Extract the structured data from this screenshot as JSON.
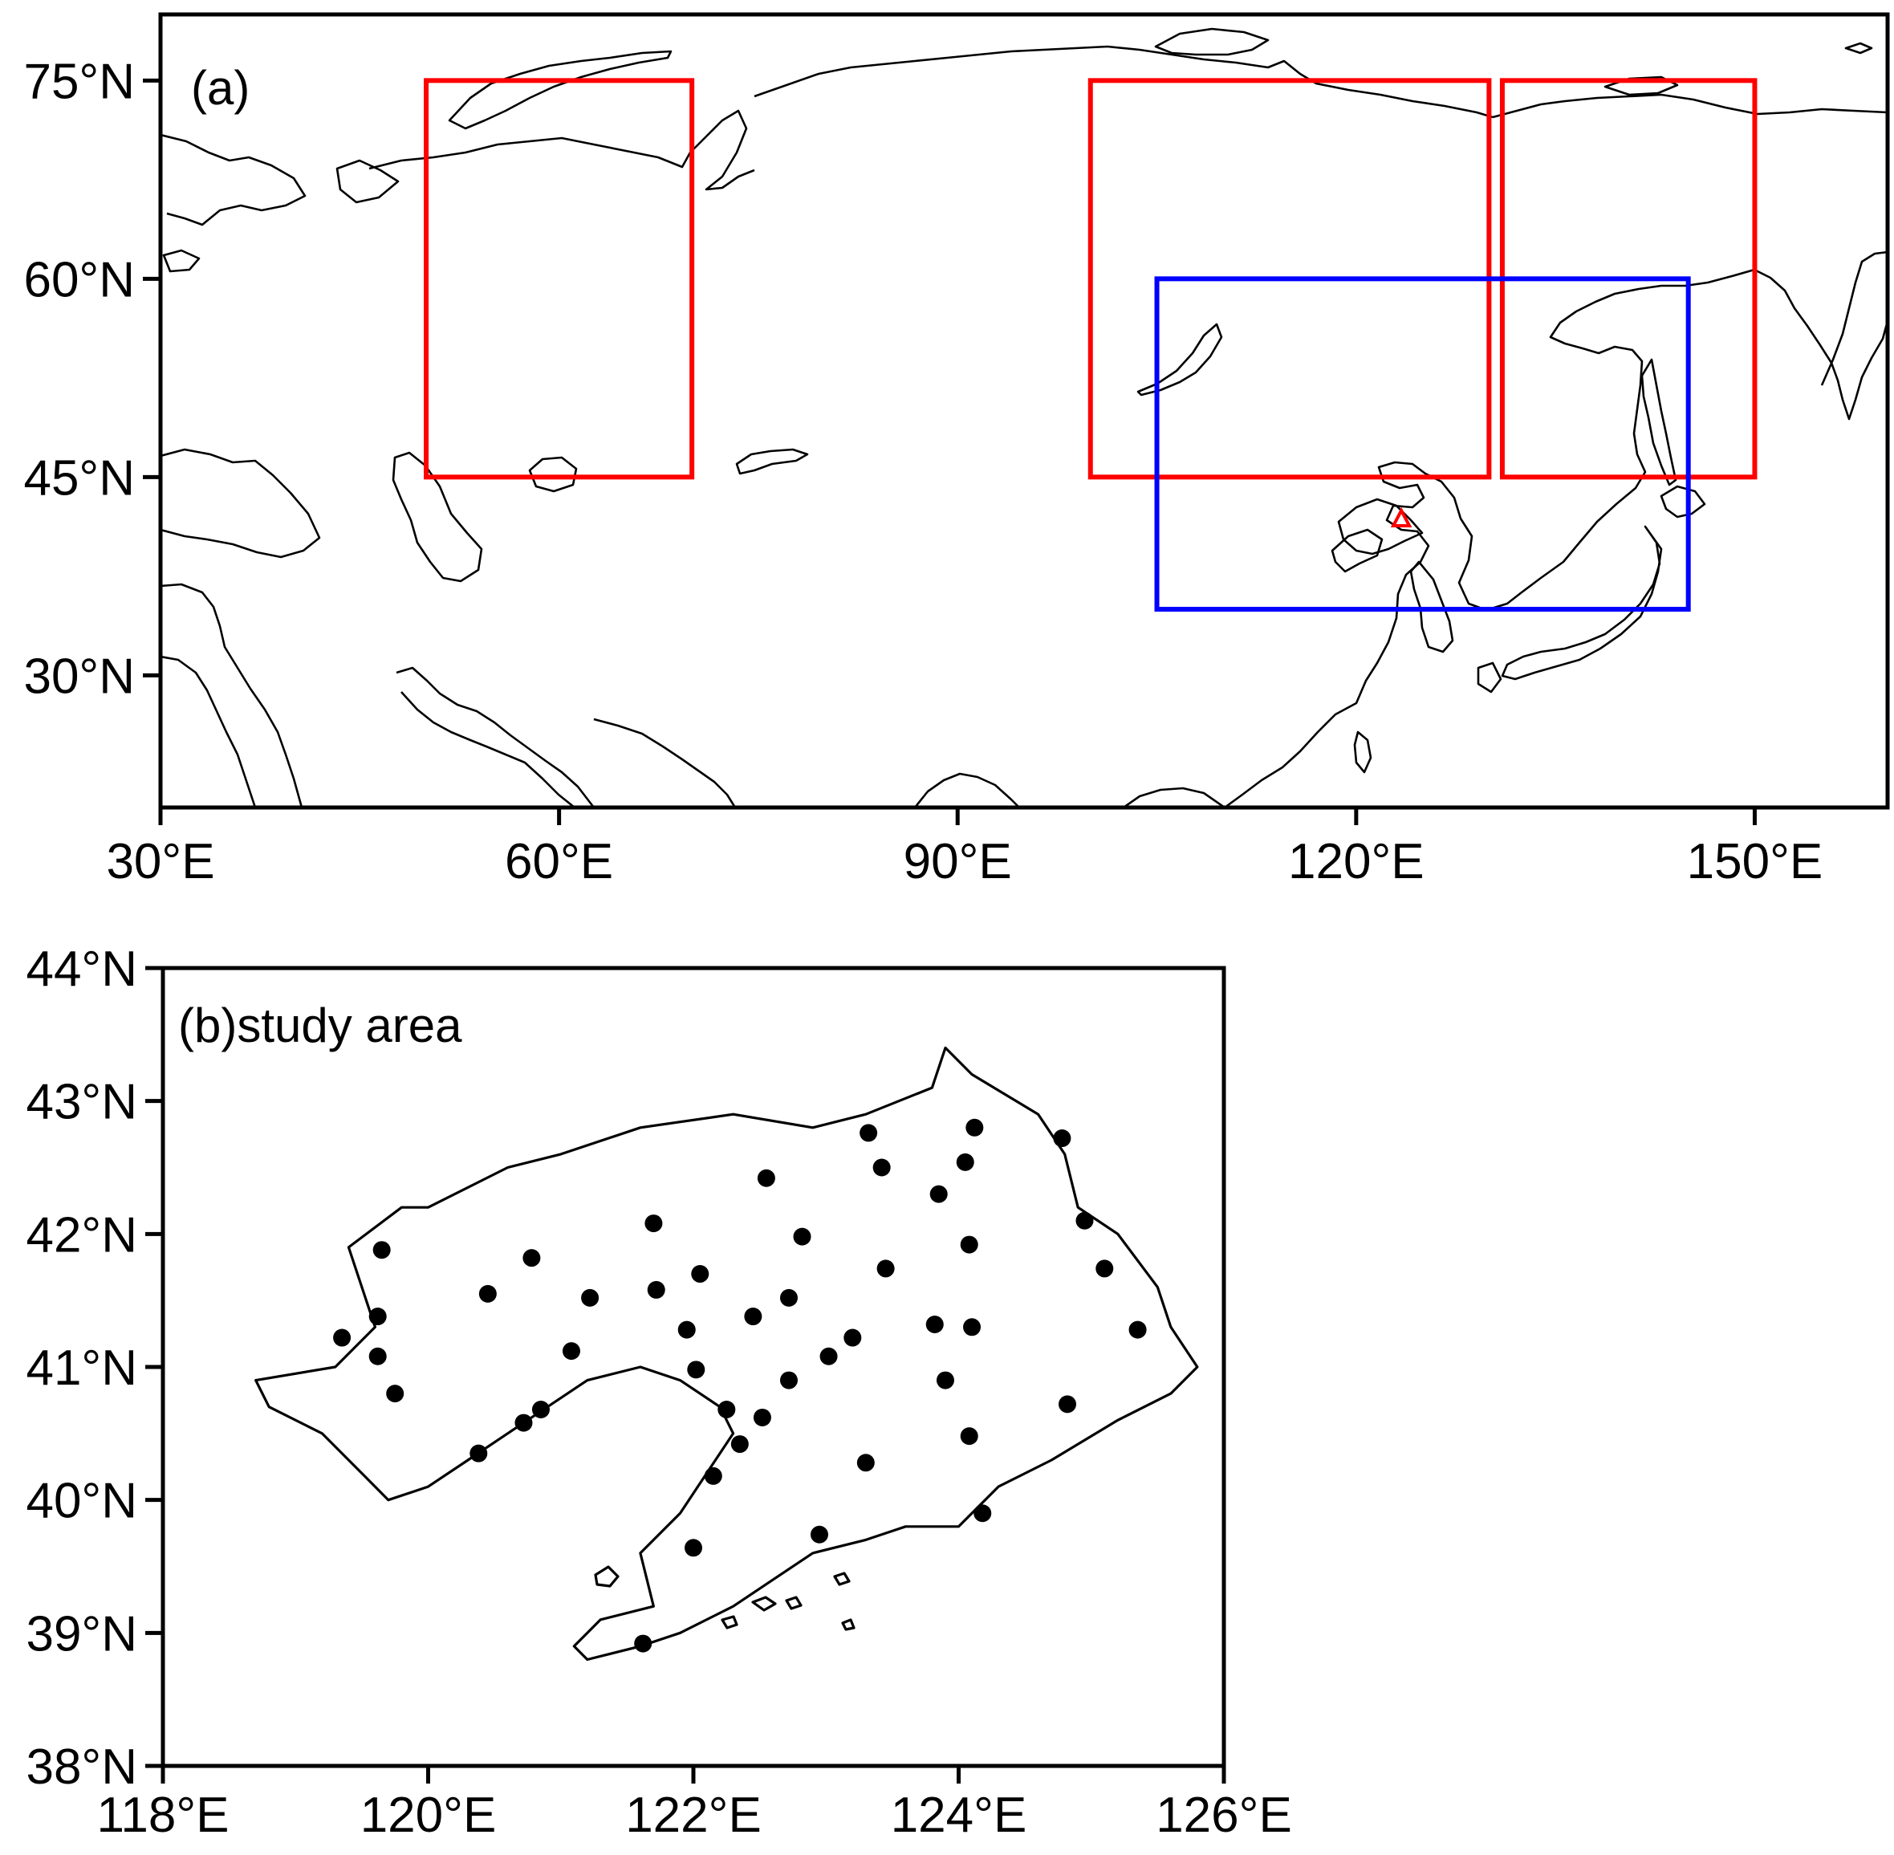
{
  "panel_a": {
    "label": "(a)",
    "lon_range": [
      30,
      160
    ],
    "lat_range": [
      20,
      80
    ],
    "x_ticks": [
      {
        "value": 30,
        "label": "30°E"
      },
      {
        "value": 60,
        "label": "60°E"
      },
      {
        "value": 90,
        "label": "90°E"
      },
      {
        "value": 120,
        "label": "120°E"
      },
      {
        "value": 150,
        "label": "150°E"
      }
    ],
    "y_ticks": [
      {
        "value": 30,
        "label": "30°N"
      },
      {
        "value": 45,
        "label": "45°N"
      },
      {
        "value": 60,
        "label": "60°N"
      },
      {
        "value": 75,
        "label": "75°N"
      }
    ],
    "red_boxes": [
      {
        "lon": [
          50,
          70
        ],
        "lat": [
          45,
          75
        ]
      },
      {
        "lon": [
          100,
          130
        ],
        "lat": [
          45,
          75
        ]
      },
      {
        "lon": [
          131,
          150
        ],
        "lat": [
          45,
          75
        ]
      }
    ],
    "blue_box": {
      "lon": [
        105,
        145
      ],
      "lat": [
        35,
        60
      ]
    },
    "marker": {
      "lon": 123.4,
      "lat": 41.8,
      "shape": "triangle",
      "color": "#ff0000"
    }
  },
  "panel_b": {
    "label": "(b)study area",
    "lon_range": [
      118,
      126
    ],
    "lat_range": [
      38,
      44
    ],
    "x_ticks": [
      {
        "value": 118,
        "label": "118°E"
      },
      {
        "value": 120,
        "label": "120°E"
      },
      {
        "value": 122,
        "label": "122°E"
      },
      {
        "value": 124,
        "label": "124°E"
      },
      {
        "value": 126,
        "label": "126°E"
      }
    ],
    "y_ticks": [
      {
        "value": 38,
        "label": "38°N"
      },
      {
        "value": 39,
        "label": "39°N"
      },
      {
        "value": 40,
        "label": "40°N"
      },
      {
        "value": 41,
        "label": "41°N"
      },
      {
        "value": 42,
        "label": "42°N"
      },
      {
        "value": 43,
        "label": "43°N"
      },
      {
        "value": 44,
        "label": "44°N"
      }
    ],
    "boundary": [
      [
        119.3,
        41.0
      ],
      [
        119.6,
        41.3
      ],
      [
        119.4,
        41.9
      ],
      [
        119.8,
        42.2
      ],
      [
        120.0,
        42.2
      ],
      [
        120.6,
        42.5
      ],
      [
        121.0,
        42.6
      ],
      [
        121.6,
        42.8
      ],
      [
        122.3,
        42.9
      ],
      [
        122.9,
        42.8
      ],
      [
        123.3,
        42.9
      ],
      [
        123.8,
        43.1
      ],
      [
        123.9,
        43.4
      ],
      [
        124.1,
        43.2
      ],
      [
        124.6,
        42.9
      ],
      [
        124.8,
        42.6
      ],
      [
        124.9,
        42.2
      ],
      [
        125.2,
        42.0
      ],
      [
        125.5,
        41.6
      ],
      [
        125.6,
        41.3
      ],
      [
        125.8,
        41.0
      ],
      [
        125.6,
        40.8
      ],
      [
        125.2,
        40.6
      ],
      [
        124.7,
        40.3
      ],
      [
        124.3,
        40.1
      ],
      [
        124.0,
        39.8
      ],
      [
        123.6,
        39.8
      ],
      [
        123.3,
        39.7
      ],
      [
        122.9,
        39.6
      ],
      [
        122.6,
        39.4
      ],
      [
        122.3,
        39.2
      ],
      [
        121.9,
        39.0
      ],
      [
        121.6,
        38.9
      ],
      [
        121.2,
        38.8
      ],
      [
        121.1,
        38.9
      ],
      [
        121.3,
        39.1
      ],
      [
        121.7,
        39.2
      ],
      [
        121.6,
        39.6
      ],
      [
        121.9,
        39.9
      ],
      [
        122.1,
        40.2
      ],
      [
        122.3,
        40.5
      ],
      [
        122.2,
        40.7
      ],
      [
        121.9,
        40.9
      ],
      [
        121.6,
        41.0
      ],
      [
        121.2,
        40.9
      ],
      [
        120.9,
        40.7
      ],
      [
        120.6,
        40.5
      ],
      [
        120.3,
        40.3
      ],
      [
        120.0,
        40.1
      ],
      [
        119.7,
        40.0
      ],
      [
        119.5,
        40.2
      ],
      [
        119.2,
        40.5
      ],
      [
        118.8,
        40.7
      ],
      [
        118.7,
        40.9
      ]
    ],
    "stations": [
      [
        119.65,
        41.88
      ],
      [
        119.62,
        41.38
      ],
      [
        119.62,
        41.08
      ],
      [
        119.75,
        40.8
      ],
      [
        119.35,
        41.22
      ],
      [
        120.45,
        41.55
      ],
      [
        120.78,
        41.82
      ],
      [
        121.22,
        41.52
      ],
      [
        121.08,
        41.12
      ],
      [
        120.38,
        40.35
      ],
      [
        120.72,
        40.58
      ],
      [
        120.85,
        40.68
      ],
      [
        121.7,
        42.08
      ],
      [
        121.72,
        41.58
      ],
      [
        121.95,
        41.28
      ],
      [
        122.05,
        41.7
      ],
      [
        122.02,
        40.98
      ],
      [
        122.25,
        40.68
      ],
      [
        122.35,
        40.42
      ],
      [
        122.15,
        40.18
      ],
      [
        122.55,
        42.42
      ],
      [
        122.82,
        41.98
      ],
      [
        122.45,
        41.38
      ],
      [
        122.72,
        41.52
      ],
      [
        122.72,
        40.9
      ],
      [
        122.52,
        40.62
      ],
      [
        123.02,
        41.08
      ],
      [
        123.2,
        41.22
      ],
      [
        123.32,
        42.76
      ],
      [
        123.42,
        42.5
      ],
      [
        123.45,
        41.74
      ],
      [
        123.85,
        42.3
      ],
      [
        124.05,
        42.54
      ],
      [
        124.12,
        42.8
      ],
      [
        124.08,
        41.92
      ],
      [
        123.82,
        41.32
      ],
      [
        124.1,
        41.3
      ],
      [
        123.9,
        40.9
      ],
      [
        124.08,
        40.48
      ],
      [
        124.78,
        42.72
      ],
      [
        124.95,
        42.1
      ],
      [
        125.1,
        41.74
      ],
      [
        125.35,
        41.28
      ],
      [
        124.82,
        40.72
      ],
      [
        123.3,
        40.28
      ],
      [
        122.95,
        39.74
      ],
      [
        122.0,
        39.64
      ],
      [
        124.18,
        39.9
      ],
      [
        121.62,
        38.92
      ]
    ]
  }
}
